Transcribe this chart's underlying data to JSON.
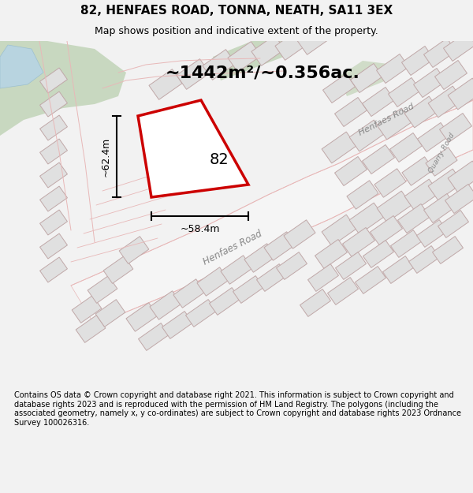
{
  "title": "82, HENFAES ROAD, TONNA, NEATH, SA11 3EX",
  "subtitle": "Map shows position and indicative extent of the property.",
  "area_text": "~1442m²/~0.356ac.",
  "label_82": "82",
  "dim_width": "~58.4m",
  "dim_height": "~62.4m",
  "road_label_main": "Henfaes Road",
  "road_label_upper": "Henfaes Road",
  "quarry_road": "Quarry Road",
  "footer": "Contains OS data © Crown copyright and database right 2021. This information is subject to Crown copyright and database rights 2023 and is reproduced with the permission of HM Land Registry. The polygons (including the associated geometry, namely x, y co-ordinates) are subject to Crown copyright and database rights 2023 Ordnance Survey 100026316.",
  "bg_color": "#f2f2f2",
  "map_bg": "#ffffff",
  "plot_outline_color": "#cc0000",
  "dim_color": "#000000",
  "text_color": "#000000",
  "green_area1": "#c8d8c0",
  "green_area2": "#c8d8c0",
  "water_color": "#b8d4e0",
  "road_line_color": "#e8b8b8",
  "plot_line_color": "#e8b0b0",
  "building_fill": "#e0e0e0",
  "building_edge": "#c0a8a8",
  "title_fontsize": 11,
  "subtitle_fontsize": 9,
  "area_fontsize": 16,
  "label_fontsize": 14,
  "dim_fontsize": 9,
  "footer_fontsize": 7
}
